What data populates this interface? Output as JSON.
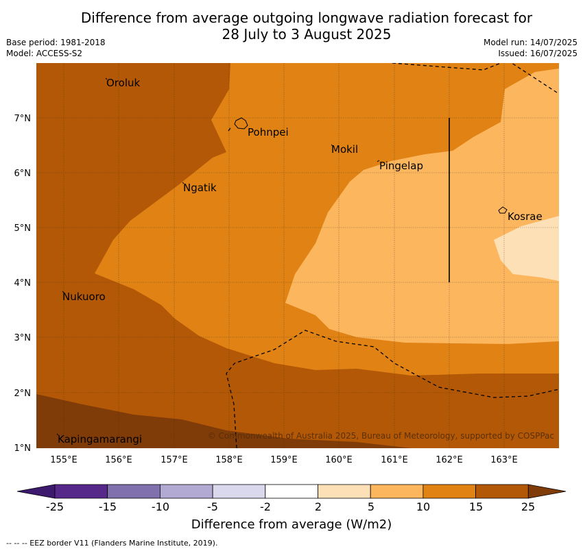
{
  "title": {
    "line1": "Difference from average outgoing longwave radiation forecast for",
    "line2": "28 July to 3 August 2025"
  },
  "meta": {
    "base_period": "Base period: 1981-2018",
    "model": "Model: ACCESS-S2",
    "model_run": "Model run: 14/07/2025",
    "issued": "Issued: 16/07/2025"
  },
  "axes": {
    "lon_labels": [
      "155°E",
      "156°E",
      "157°E",
      "158°E",
      "159°E",
      "160°E",
      "161°E",
      "162°E",
      "163°E"
    ],
    "lat_labels": [
      "7°N",
      "6°N",
      "5°N",
      "4°N",
      "3°N",
      "2°N",
      "1°N"
    ]
  },
  "places": [
    {
      "name": "Oroluk"
    },
    {
      "name": "Pohnpei"
    },
    {
      "name": "Mokil"
    },
    {
      "name": "Pingelap"
    },
    {
      "name": "Ngatik"
    },
    {
      "name": "Kosrae"
    },
    {
      "name": "Nukuoro"
    },
    {
      "name": "Kapingamarangi"
    }
  ],
  "copyright": "© Commonwealth of Australia 2025, Bureau of Meteorology, supported by COSPPac",
  "colorbar": {
    "labels": [
      "-25",
      "-15",
      "-10",
      "-5",
      "-2",
      "2",
      "5",
      "10",
      "15",
      "25"
    ],
    "colors": [
      "#3d1a6e",
      "#55288a",
      "#8070ae",
      "#b2aad2",
      "#d9d8ec",
      "#ffffff",
      "#fee0b7",
      "#fcb65e",
      "#e08214",
      "#b35806",
      "#7f3b08"
    ],
    "title": "Difference from average (W/m2)"
  },
  "footnote": "--  --  -- EEZ border V11 (Flanders Marine Institute, 2019)."
}
